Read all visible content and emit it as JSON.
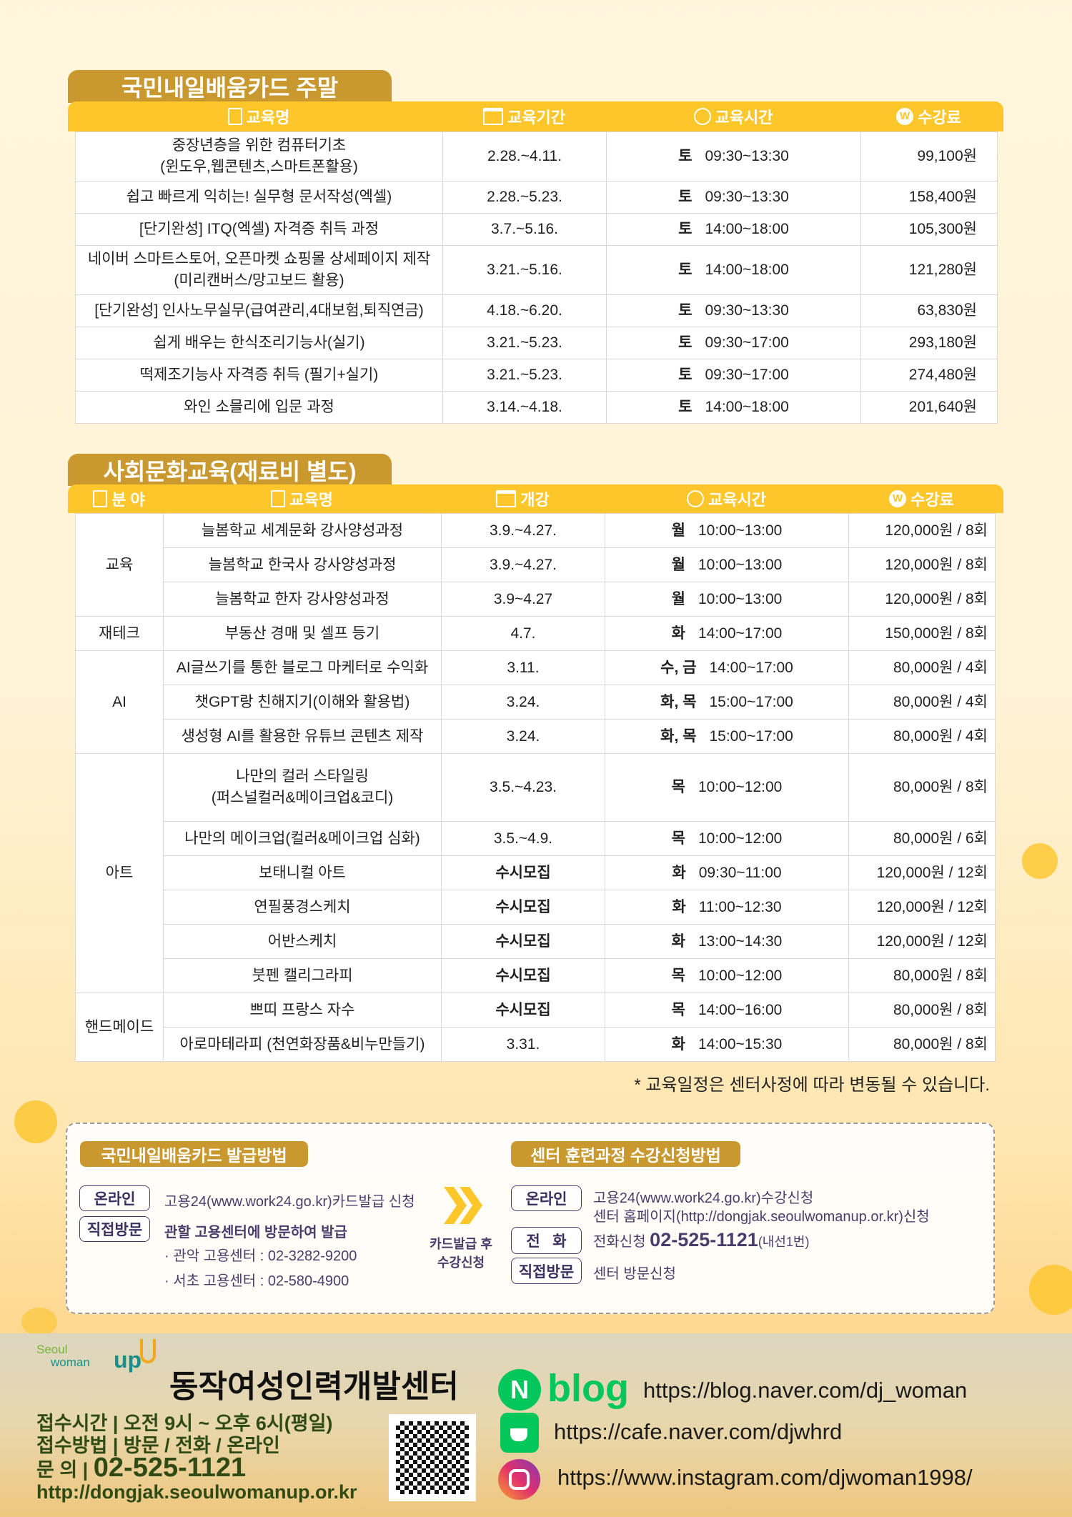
{
  "colors": {
    "tab": "#c9982f",
    "header": "#fdc72c",
    "label_text": "#4a3d6b",
    "footer_text": "#2f4a14",
    "naver_green": "#03c75a"
  },
  "section1": {
    "title": "국민내일배움카드 주말",
    "headers": [
      {
        "icon": "document-icon",
        "label": "교육명"
      },
      {
        "icon": "calendar-icon",
        "label": "교육기간"
      },
      {
        "icon": "alarm-clock-icon",
        "label": "교육시간"
      },
      {
        "icon": "won-icon",
        "label": "수강료"
      }
    ],
    "rows": [
      {
        "name": "중장년층을 위한 컴퓨터기초\n(윈도우,웹콘텐츠,스마트폰활용)",
        "period": "2.28.~4.11.",
        "day": "토",
        "time": "09:30~13:30",
        "fee": "99,100원"
      },
      {
        "name": "쉽고 빠르게 익히는! 실무형 문서작성(엑셀)",
        "period": "2.28.~5.23.",
        "day": "토",
        "time": "09:30~13:30",
        "fee": "158,400원"
      },
      {
        "name": "[단기완성] ITQ(엑셀) 자격증 취득 과정",
        "period": "3.7.~5.16.",
        "day": "토",
        "time": "14:00~18:00",
        "fee": "105,300원"
      },
      {
        "name": "네이버 스마트스토어, 오픈마켓 쇼핑몰 상세페이지 제작\n(미리캔버스/망고보드 활용)",
        "period": "3.21.~5.16.",
        "day": "토",
        "time": "14:00~18:00",
        "fee": "121,280원"
      },
      {
        "name": "[단기완성] 인사노무실무(급여관리,4대보험,퇴직연금)",
        "period": "4.18.~6.20.",
        "day": "토",
        "time": "09:30~13:30",
        "fee": "63,830원"
      },
      {
        "name": "쉽게 배우는 한식조리기능사(실기)",
        "period": "3.21.~5.23.",
        "day": "토",
        "time": "09:30~17:00",
        "fee": "293,180원"
      },
      {
        "name": "떡제조기능사 자격증 취득 (필기+실기)",
        "period": "3.21.~5.23.",
        "day": "토",
        "time": "09:30~17:00",
        "fee": "274,480원"
      },
      {
        "name": "와인 소믈리에 입문 과정",
        "period": "3.14.~4.18.",
        "day": "토",
        "time": "14:00~18:00",
        "fee": "201,640원"
      }
    ]
  },
  "section2": {
    "title": "사회문화교육(재료비 별도)",
    "headers": [
      {
        "icon": "document-icon",
        "label": "분 야"
      },
      {
        "icon": "document-icon",
        "label": "교육명"
      },
      {
        "icon": "calendar-icon",
        "label": "개강"
      },
      {
        "icon": "alarm-clock-icon",
        "label": "교육시간"
      },
      {
        "icon": "won-icon",
        "label": "수강료"
      }
    ],
    "groups": [
      {
        "category": "교육",
        "rows": [
          {
            "name": "늘봄학교 세계문화 강사양성과정",
            "start": "3.9.~4.27.",
            "day": "월",
            "time": "10:00~13:00",
            "fee": "120,000원 / 8회"
          },
          {
            "name": "늘봄학교 한국사 강사양성과정",
            "start": "3.9.~4.27.",
            "day": "월",
            "time": "10:00~13:00",
            "fee": "120,000원 / 8회"
          },
          {
            "name": "늘봄학교 한자 강사양성과정",
            "start": "3.9~4.27",
            "day": "월",
            "time": "10:00~13:00",
            "fee": "120,000원 / 8회"
          }
        ]
      },
      {
        "category": "재테크",
        "rows": [
          {
            "name": "부동산 경매 및 셀프 등기",
            "start": "4.7.",
            "day": "화",
            "time": "14:00~17:00",
            "fee": "150,000원 / 8회"
          }
        ]
      },
      {
        "category": "AI",
        "rows": [
          {
            "name": "AI글쓰기를 통한 블로그 마케터로 수익화",
            "start": "3.11.",
            "day": "수, 금",
            "time": "14:00~17:00",
            "fee": "80,000원 / 4회"
          },
          {
            "name": "챗GPT랑 친해지기(이해와 활용법)",
            "start": "3.24.",
            "day": "화, 목",
            "time": "15:00~17:00",
            "fee": "80,000원 / 4회"
          },
          {
            "name": "생성형 AI를 활용한 유튜브 콘텐츠 제작",
            "start": "3.24.",
            "day": "화, 목",
            "time": "15:00~17:00",
            "fee": "80,000원 / 4회"
          }
        ]
      },
      {
        "category": "아트",
        "rows": [
          {
            "name": "나만의 컬러 스타일링\n(퍼스널컬러&메이크업&코디)",
            "start": "3.5.~4.23.",
            "day": "목",
            "time": "10:00~12:00",
            "fee": "80,000원 / 8회"
          },
          {
            "name": "나만의 메이크업(컬러&메이크업 심화)",
            "start": "3.5.~4.9.",
            "day": "목",
            "time": "10:00~12:00",
            "fee": "80,000원 / 6회"
          },
          {
            "name": "보태니컬 아트",
            "start": "수시모집",
            "day": "화",
            "time": "09:30~11:00",
            "fee": "120,000원 / 12회"
          },
          {
            "name": "연필풍경스케치",
            "start": "수시모집",
            "day": "화",
            "time": "11:00~12:30",
            "fee": "120,000원 / 12회"
          },
          {
            "name": "어반스케치",
            "start": "수시모집",
            "day": "화",
            "time": "13:00~14:30",
            "fee": "120,000원 / 12회"
          },
          {
            "name": "붓펜 캘리그라피",
            "start": "수시모집",
            "day": "목",
            "time": "10:00~12:00",
            "fee": "80,000원 / 8회"
          }
        ]
      },
      {
        "category": "핸드메이드",
        "rows": [
          {
            "name": "쁘띠 프랑스 자수",
            "start": "수시모집",
            "day": "목",
            "time": "14:00~16:00",
            "fee": "80,000원 / 8회"
          },
          {
            "name": "아로마테라피 (천연화장품&비누만들기)",
            "start": "3.31.",
            "day": "화",
            "time": "14:00~15:30",
            "fee": "80,000원 / 8회"
          }
        ]
      }
    ],
    "note": "* 교육일정은 센터사정에 따라 변동될 수 있습니다."
  },
  "howto": {
    "left_title": "국민내일배움카드 발급방법",
    "left": {
      "online_label": "온라인",
      "online_text": "고용24(www.work24.go.kr)카드발급 신청",
      "visit_label": "직접방문",
      "visit_text": "관할 고용센터에 방문하여 발급",
      "center1": "· 관악 고용센터 : 02-3282-9200",
      "center2": "· 서초 고용센터 : 02-580-4900"
    },
    "arrow_line1": "카드발급 후",
    "arrow_line2": "수강신청",
    "right_title": "센터 훈련과정 수강신청방법",
    "right": {
      "online_label": "온라인",
      "online_text1": "고용24(www.work24.go.kr)수강신청",
      "online_text2": "센터 홈페이지(http://dongjak.seoulwomanup.or.kr)신청",
      "phone_label": "전   화",
      "phone_prefix": "전화신청",
      "phone_number": "02-525-1121",
      "phone_ext": "(내선1번)",
      "visit_label": "직접방문",
      "visit_text": "센터 방문신청"
    }
  },
  "footer": {
    "logo_text": "Seoul woman up",
    "logo_line1": "Seoul",
    "logo_line2": "woman",
    "logo_line3": "up",
    "center_name": "동작여성인력개발센터",
    "hours": "접수시간 | 오전 9시 ~ 오후 6시(평일)",
    "method": "접수방법 | 방문 / 전화 / 온라인",
    "inquiry_label": "문      의 |",
    "inquiry_number": "02-525-1121",
    "website": "http://dongjak.seoulwomanup.or.kr",
    "blog_label": "blog",
    "blog_url": "https://blog.naver.com/dj_woman",
    "cafe_url": "https://cafe.naver.com/djwhrd",
    "instagram_url": "https://www.instagram.com/djwoman1998/"
  }
}
